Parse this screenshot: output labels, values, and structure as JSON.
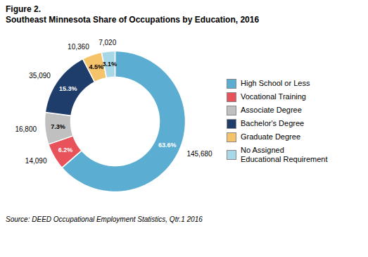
{
  "chart_data": {
    "type": "pie",
    "title": "Figure 2.",
    "subtitle": "Southeast Minnesota Share of Occupations by Education, 2016",
    "caption": "Source: DEED Occupational Employment Statistics, Qtr.1 2016",
    "categories": [
      "High School or Less",
      "Vocational Training",
      "Associate Degree",
      "Bachelor's Degree",
      "Graduate Degree",
      "No Assigned\nEducational Requirement"
    ],
    "values": [
      145680,
      14090,
      16800,
      35090,
      10360,
      7020
    ],
    "value_labels": [
      "145,680",
      "14,090",
      "16,800",
      "35,090",
      "10,360",
      "7,020"
    ],
    "percentages": [
      63.6,
      6.2,
      7.3,
      15.3,
      4.5,
      3.1
    ],
    "percentage_labels": [
      "63.6%",
      "6.2%",
      "7.3%",
      "15.3%",
      "4.5%",
      "3.1%"
    ],
    "colors": [
      "#5BADD1",
      "#E8525A",
      "#C0C0C0",
      "#1F3D6B",
      "#F5C46A",
      "#A8D8E8"
    ],
    "legend": "right",
    "data_labels": true,
    "tick_labels": false
  }
}
